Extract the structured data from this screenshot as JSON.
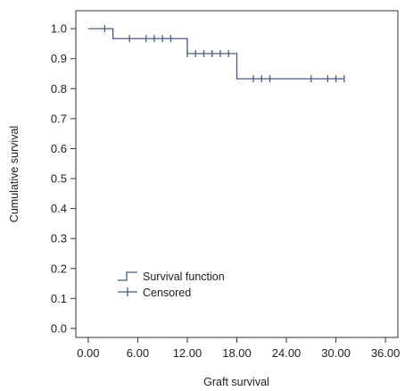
{
  "chart_data": {
    "type": "line",
    "xlabel": "Graft survival",
    "ylabel": "Cumulative survival",
    "xlim": [
      -1.5,
      37.5
    ],
    "ylim": [
      -0.03,
      1.06
    ],
    "x_ticks": [
      "0.00",
      "6.00",
      "12.00",
      "18.00",
      "24.00",
      "30.00",
      "36.00"
    ],
    "x_tick_values": [
      0,
      6,
      12,
      18,
      24,
      30,
      36
    ],
    "y_ticks": [
      "0.0",
      "0.1",
      "0.2",
      "0.3",
      "0.4",
      "0.5",
      "0.6",
      "0.7",
      "0.8",
      "0.9",
      "1.0"
    ],
    "y_tick_values": [
      0,
      0.1,
      0.2,
      0.3,
      0.4,
      0.5,
      0.6,
      0.7,
      0.8,
      0.9,
      1.0
    ],
    "grid": false,
    "legend_position": "bottom-left",
    "series": [
      {
        "name": "Survival function",
        "style": "step",
        "x": [
          0,
          3,
          12,
          18,
          31
        ],
        "y": [
          1.0,
          0.967,
          0.917,
          0.833,
          0.833
        ]
      },
      {
        "name": "Censored",
        "style": "marker",
        "x": [
          2,
          5,
          7,
          8,
          9,
          10,
          12,
          13,
          14,
          15,
          16,
          17,
          20,
          21,
          22,
          27,
          29,
          30,
          31
        ],
        "y": [
          1.0,
          0.967,
          0.967,
          0.967,
          0.967,
          0.967,
          0.917,
          0.917,
          0.917,
          0.917,
          0.917,
          0.917,
          0.833,
          0.833,
          0.833,
          0.833,
          0.833,
          0.833,
          0.833
        ]
      }
    ],
    "line_color": "#4a5a8c",
    "axis_color": "#333333"
  }
}
